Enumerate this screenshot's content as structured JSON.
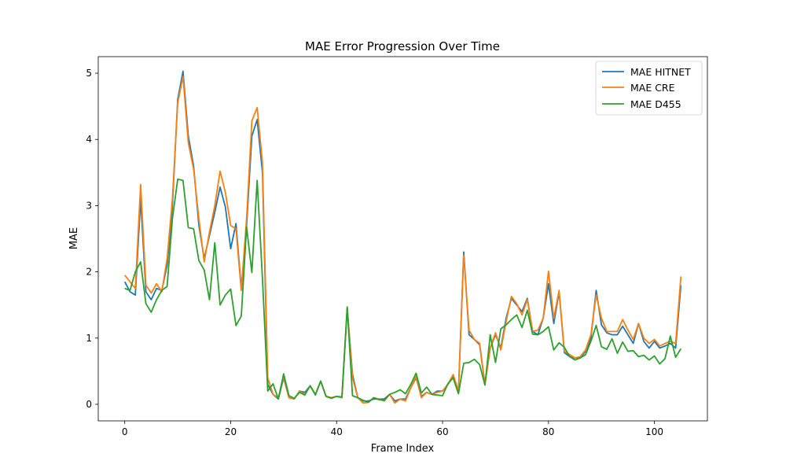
{
  "chart_data": {
    "type": "line",
    "title": "MAE Error Progression Over Time",
    "xlabel": "Frame Index",
    "ylabel": "MAE",
    "xlim": [
      -5,
      110
    ],
    "ylim": [
      -0.25,
      5.25
    ],
    "xticks": [
      0,
      20,
      40,
      60,
      80,
      100
    ],
    "yticks": [
      0,
      1,
      2,
      3,
      4,
      5
    ],
    "grid": false,
    "legend_position": "top-right",
    "x_start": 0,
    "series": [
      {
        "name": "MAE HITNET",
        "color": "#1f77b4",
        "values": [
          1.85,
          1.7,
          1.65,
          3.1,
          1.7,
          1.58,
          1.75,
          1.72,
          2.1,
          3.0,
          4.6,
          5.03,
          4.05,
          3.6,
          2.7,
          2.2,
          2.55,
          2.9,
          3.28,
          2.98,
          2.35,
          2.73,
          1.75,
          2.7,
          4.05,
          4.3,
          3.5,
          0.3,
          0.15,
          0.08,
          0.4,
          0.1,
          0.08,
          0.2,
          0.18,
          0.28,
          0.15,
          0.35,
          0.12,
          0.1,
          0.12,
          0.1,
          1.45,
          0.45,
          0.1,
          0.05,
          0.05,
          0.08,
          0.08,
          0.08,
          0.15,
          0.05,
          0.08,
          0.08,
          0.25,
          0.4,
          0.12,
          0.18,
          0.15,
          0.2,
          0.2,
          0.3,
          0.42,
          0.2,
          2.3,
          1.05,
          0.98,
          0.9,
          0.3,
          0.85,
          1.05,
          0.85,
          1.3,
          1.6,
          1.5,
          1.4,
          1.6,
          1.1,
          1.05,
          1.3,
          1.82,
          1.22,
          1.7,
          0.78,
          0.72,
          0.7,
          0.7,
          0.8,
          1.0,
          1.72,
          1.2,
          1.08,
          1.05,
          1.05,
          1.18,
          1.05,
          0.92,
          1.22,
          0.95,
          0.85,
          0.95,
          0.85,
          0.88,
          0.92,
          0.85,
          1.8
        ]
      },
      {
        "name": "MAE CRE",
        "color": "#ff7f0e",
        "values": [
          1.95,
          1.85,
          1.75,
          3.32,
          1.8,
          1.68,
          1.82,
          1.7,
          2.2,
          3.1,
          4.55,
          4.95,
          3.95,
          3.55,
          2.8,
          2.15,
          2.6,
          3.0,
          3.52,
          3.2,
          2.7,
          2.65,
          1.72,
          2.8,
          4.28,
          4.48,
          3.65,
          0.4,
          0.15,
          0.1,
          0.42,
          0.1,
          0.08,
          0.2,
          0.15,
          0.28,
          0.15,
          0.35,
          0.12,
          0.1,
          0.12,
          0.1,
          1.45,
          0.4,
          0.1,
          0.02,
          0.03,
          0.1,
          0.08,
          0.05,
          0.15,
          0.02,
          0.08,
          0.05,
          0.25,
          0.42,
          0.1,
          0.18,
          0.15,
          0.18,
          0.2,
          0.3,
          0.45,
          0.2,
          2.25,
          1.12,
          0.98,
          0.92,
          0.3,
          0.85,
          1.08,
          0.82,
          1.25,
          1.63,
          1.52,
          1.35,
          1.58,
          1.1,
          1.12,
          1.3,
          2.01,
          1.3,
          1.72,
          0.8,
          0.75,
          0.7,
          0.72,
          0.82,
          1.05,
          1.65,
          1.3,
          1.1,
          1.1,
          1.1,
          1.28,
          1.12,
          0.98,
          1.22,
          1.0,
          0.92,
          0.98,
          0.88,
          0.92,
          0.95,
          0.92,
          1.93
        ]
      },
      {
        "name": "MAE D455",
        "color": "#2ca02c",
        "values": [
          1.75,
          1.72,
          2.0,
          2.15,
          1.52,
          1.39,
          1.58,
          1.72,
          1.78,
          2.8,
          3.4,
          3.38,
          2.67,
          2.65,
          2.17,
          2.03,
          1.58,
          2.44,
          1.5,
          1.65,
          1.74,
          1.19,
          1.33,
          2.68,
          1.99,
          3.38,
          1.9,
          0.2,
          0.31,
          0.08,
          0.46,
          0.13,
          0.09,
          0.18,
          0.14,
          0.28,
          0.14,
          0.35,
          0.12,
          0.09,
          0.12,
          0.11,
          1.47,
          0.13,
          0.1,
          0.06,
          0.03,
          0.1,
          0.07,
          0.06,
          0.15,
          0.18,
          0.22,
          0.16,
          0.3,
          0.47,
          0.17,
          0.26,
          0.15,
          0.14,
          0.13,
          0.31,
          0.4,
          0.16,
          0.62,
          0.63,
          0.68,
          0.6,
          0.29,
          1.05,
          0.63,
          1.14,
          1.2,
          1.28,
          1.35,
          1.16,
          1.42,
          1.06,
          1.05,
          1.1,
          1.17,
          0.82,
          0.93,
          0.86,
          0.72,
          0.67,
          0.7,
          0.75,
          0.95,
          1.19,
          0.87,
          0.83,
          0.99,
          0.77,
          0.94,
          0.8,
          0.81,
          0.72,
          0.74,
          0.67,
          0.73,
          0.61,
          0.69,
          1.03,
          0.71,
          0.84
        ]
      }
    ]
  }
}
